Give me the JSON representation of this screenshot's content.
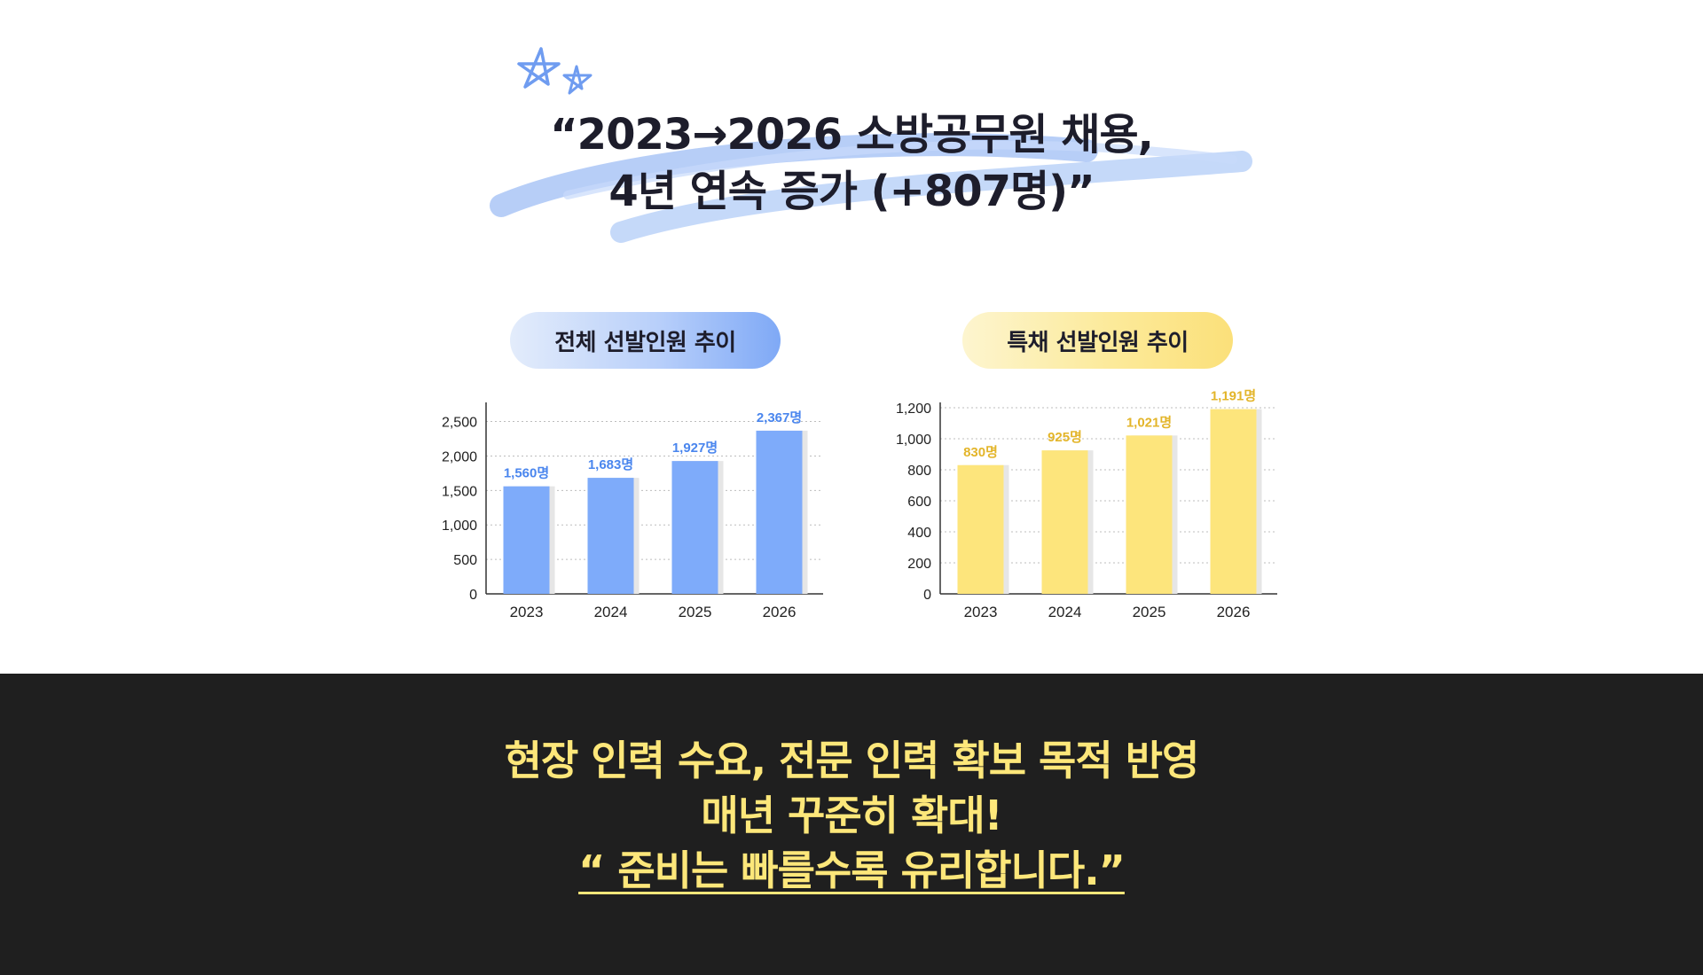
{
  "headline": {
    "line1": "“2023→2026 소방공무원 채용,",
    "line2": "4년 연속 증가 (+807명)”",
    "decor_icon": "star-doodle-icon",
    "brush_color": "#a9c6f7"
  },
  "charts": {
    "total_title": "전체 선발인원 추이",
    "special_title": "특채 선발인원 추이"
  },
  "chart_data": [
    {
      "type": "bar",
      "title": "전체 선발인원 추이",
      "categories": [
        "2023",
        "2024",
        "2025",
        "2026"
      ],
      "values": [
        1560,
        1683,
        1927,
        2367
      ],
      "value_labels": [
        "1,560명",
        "1,683명",
        "1,927명",
        "2,367명"
      ],
      "yticks": [
        "0",
        "500",
        "1,000",
        "1,500",
        "2,000",
        "2,500"
      ],
      "ytick_values": [
        0,
        500,
        1000,
        1500,
        2000,
        2500
      ],
      "ylim": [
        0,
        2700
      ],
      "grid": true,
      "color": "#7eabfa"
    },
    {
      "type": "bar",
      "title": "특채 선발인원 추이",
      "categories": [
        "2023",
        "2024",
        "2025",
        "2026"
      ],
      "values": [
        830,
        925,
        1021,
        1191
      ],
      "value_labels": [
        "830명",
        "925명",
        "1,021명",
        "1,191명"
      ],
      "yticks": [
        "0",
        "200",
        "400",
        "600",
        "800",
        "1,000",
        "1,200"
      ],
      "ytick_values": [
        0,
        200,
        400,
        600,
        800,
        1000,
        1200
      ],
      "ylim": [
        0,
        1200
      ],
      "grid": true,
      "color": "#fde57c"
    }
  ],
  "footer": {
    "line1": "현장 인력 수요, 전문 인력 확보 목적 반영",
    "line2": "매년 꾸준히 확대!",
    "line3": "“ 준비는 빠를수록 유리합니다.”",
    "text_color": "#fde77a",
    "background": "#1f1f1f"
  }
}
